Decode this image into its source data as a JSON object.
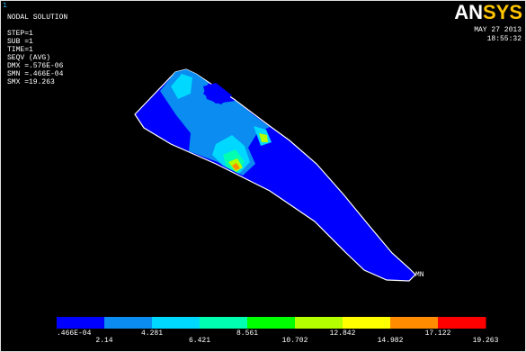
{
  "window_number": "1",
  "title": "NODAL SOLUTION",
  "info": [
    "STEP=1",
    "SUB =1",
    "TIME=1",
    "SEQV    (AVG)",
    "DMX =.576E-06",
    "SMN =.466E-04",
    "SMX =19.263"
  ],
  "logo": [
    "AN",
    "SYS"
  ],
  "date": "MAY 27 2013",
  "time": "18:55:32",
  "min_marker": "MN",
  "legend": {
    "colors": [
      "#0000ff",
      "#0a8cf0",
      "#00d8ff",
      "#00ffb0",
      "#00ff00",
      "#b4ff00",
      "#ffff00",
      "#ff8c00",
      "#ff0000"
    ],
    "labels": [
      ".466E-04",
      "2.14",
      "4.281",
      "6.421",
      "8.561",
      "10.702",
      "12.842",
      "14.982",
      "17.122",
      "19.263"
    ]
  }
}
